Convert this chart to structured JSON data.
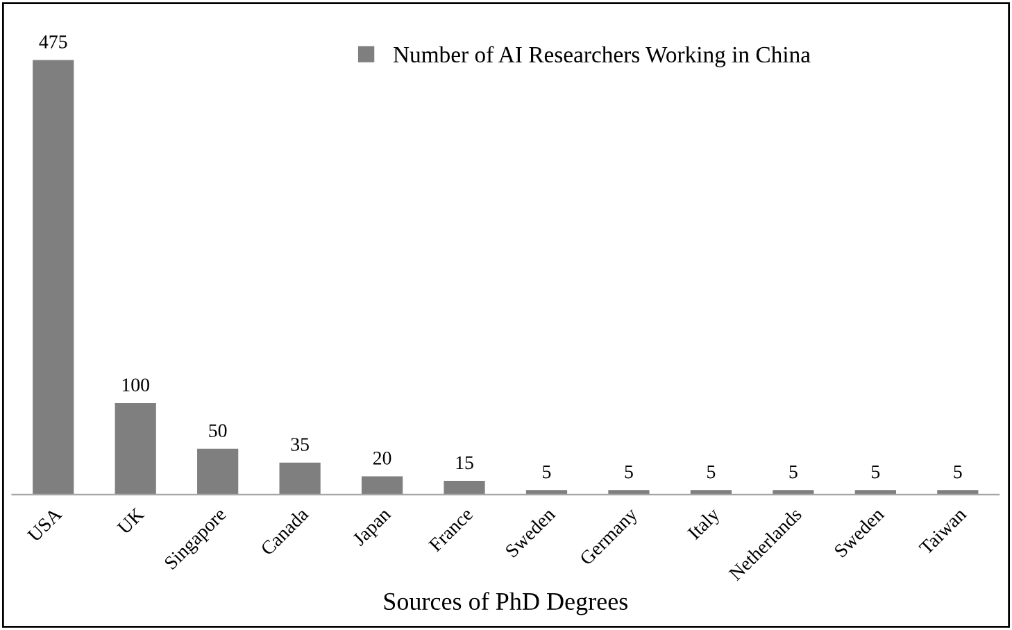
{
  "chart_data": {
    "type": "bar",
    "xlabel": "Sources of PhD Degrees",
    "categories": [
      "USA",
      "UK",
      "Singapore",
      "Canada",
      "Japan",
      "France",
      "Sweden",
      "Germany",
      "Italy",
      "Netherlands",
      "Sweden",
      "Taiwan"
    ],
    "series": [
      {
        "name": "Number of AI Researchers Working in China",
        "color": "#7f7f7f",
        "values": [
          475,
          100,
          50,
          35,
          20,
          15,
          5,
          5,
          5,
          5,
          5,
          5
        ]
      }
    ],
    "data_labels": true,
    "legend": "top",
    "tick_labels": "x"
  }
}
